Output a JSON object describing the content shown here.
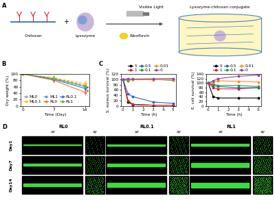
{
  "chart_data": [
    {
      "type": "line",
      "panel": "B",
      "x_label": "Time (Day)",
      "y_label": "Dry weight (%)",
      "x": [
        0,
        7,
        14
      ],
      "xlim": [
        -0.5,
        15
      ],
      "xticks": [
        0,
        7,
        14
      ],
      "ylim": [
        0,
        100
      ],
      "yticks": [
        0,
        20,
        40,
        60,
        80,
        100
      ],
      "legend": "lower left",
      "marker": "o",
      "series": [
        {
          "name": "ML0",
          "color": "#a5a5a5",
          "line_style": "dashed",
          "values": [
            100,
            87,
            65
          ],
          "errors": [
            0,
            6,
            8
          ]
        },
        {
          "name": "ML0.1",
          "color": "#ffc000",
          "line_style": "dashed",
          "values": [
            100,
            88,
            70
          ],
          "errors": [
            0,
            5,
            7
          ]
        },
        {
          "name": "ML1",
          "color": "#5b9bd5",
          "line_style": "dashed",
          "values": [
            100,
            85,
            60
          ],
          "errors": [
            0,
            6,
            8
          ]
        },
        {
          "name": "RL0",
          "color": "#ed7d31",
          "line_style": "solid",
          "values": [
            100,
            80,
            43
          ],
          "errors": [
            0,
            5,
            6
          ]
        },
        {
          "name": "RL0.1",
          "color": "#4472c4",
          "line_style": "solid",
          "values": [
            100,
            83,
            55
          ],
          "errors": [
            0,
            5,
            7
          ]
        },
        {
          "name": "RL1",
          "color": "#70ad47",
          "line_style": "solid",
          "values": [
            100,
            86,
            62
          ],
          "errors": [
            0,
            6,
            8
          ]
        }
      ],
      "annotations": [
        {
          "text": "*",
          "x": 14.3,
          "y": 56
        },
        {
          "text": "*",
          "x": 14.3,
          "y": 44
        }
      ]
    },
    {
      "type": "line",
      "panel": "C",
      "x_label": "Time (h)",
      "y_label": "S. aureus survival (%)",
      "x": [
        0,
        0.5,
        1,
        3,
        5
      ],
      "xlim": [
        -0.2,
        5.3
      ],
      "xticks": [
        0,
        1,
        2,
        3,
        4,
        5
      ],
      "ylim": [
        0,
        120
      ],
      "yticks": [
        0,
        20,
        40,
        60,
        80,
        100,
        120
      ],
      "legend": "upper center",
      "marker": "o",
      "series": [
        {
          "name": "5",
          "color": "#000000",
          "values": [
            100,
            15,
            5,
            3,
            3
          ]
        },
        {
          "name": "1",
          "color": "#e0201b",
          "values": [
            100,
            20,
            6,
            3,
            3
          ]
        },
        {
          "name": "0.5",
          "color": "#2e5fb5",
          "values": [
            100,
            45,
            35,
            15,
            10
          ]
        },
        {
          "name": "0.1",
          "color": "#2ca02c",
          "values": [
            100,
            95,
            100,
            100,
            96
          ]
        },
        {
          "name": "0.01",
          "color": "#ff8c1a",
          "values": [
            100,
            100,
            99,
            98,
            100
          ]
        },
        {
          "name": "0",
          "color": "#8e44ad",
          "values": [
            100,
            102,
            101,
            102,
            103
          ]
        }
      ]
    },
    {
      "type": "line",
      "x_label": "Time (h)",
      "y_label": "E. coli survival (%)",
      "x": [
        0,
        0.5,
        1,
        3,
        5
      ],
      "xlim": [
        -0.2,
        5.3
      ],
      "xticks": [
        0,
        1,
        2,
        3,
        4,
        5
      ],
      "ylim": [
        0,
        140
      ],
      "yticks": [
        0,
        20,
        40,
        60,
        80,
        100,
        120,
        140
      ],
      "legend": "upper center",
      "marker": "o",
      "series": [
        {
          "name": "5",
          "color": "#000000",
          "values": [
            100,
            40,
            35,
            35,
            35
          ]
        },
        {
          "name": "1",
          "color": "#e0201b",
          "values": [
            100,
            80,
            75,
            75,
            80
          ]
        },
        {
          "name": "0.5",
          "color": "#2e5fb5",
          "values": [
            100,
            90,
            85,
            80,
            80
          ]
        },
        {
          "name": "0.1",
          "color": "#2ca02c",
          "values": [
            100,
            95,
            90,
            90,
            85
          ]
        },
        {
          "name": "0.01",
          "color": "#ff8c1a",
          "values": [
            100,
            105,
            110,
            108,
            105
          ]
        },
        {
          "name": "0",
          "color": "#8e44ad",
          "values": [
            100,
            110,
            120,
            130,
            135
          ]
        }
      ]
    }
  ],
  "diagram": {
    "panel": "A",
    "nodes": [
      {
        "label": "Chitosan"
      },
      {
        "label": "+"
      },
      {
        "label": "Lysozyme"
      },
      {
        "label": "Visible Light"
      },
      {
        "label": "Riboflavin"
      },
      {
        "label": "Lysozyme-chitosan conjugate"
      }
    ]
  },
  "images": {
    "panel": "D",
    "columns": [
      "RL0",
      "RL0.1",
      "RL1"
    ],
    "views": [
      "xz",
      "xy"
    ],
    "rows": [
      "Day1",
      "Day7",
      "Day14"
    ]
  }
}
